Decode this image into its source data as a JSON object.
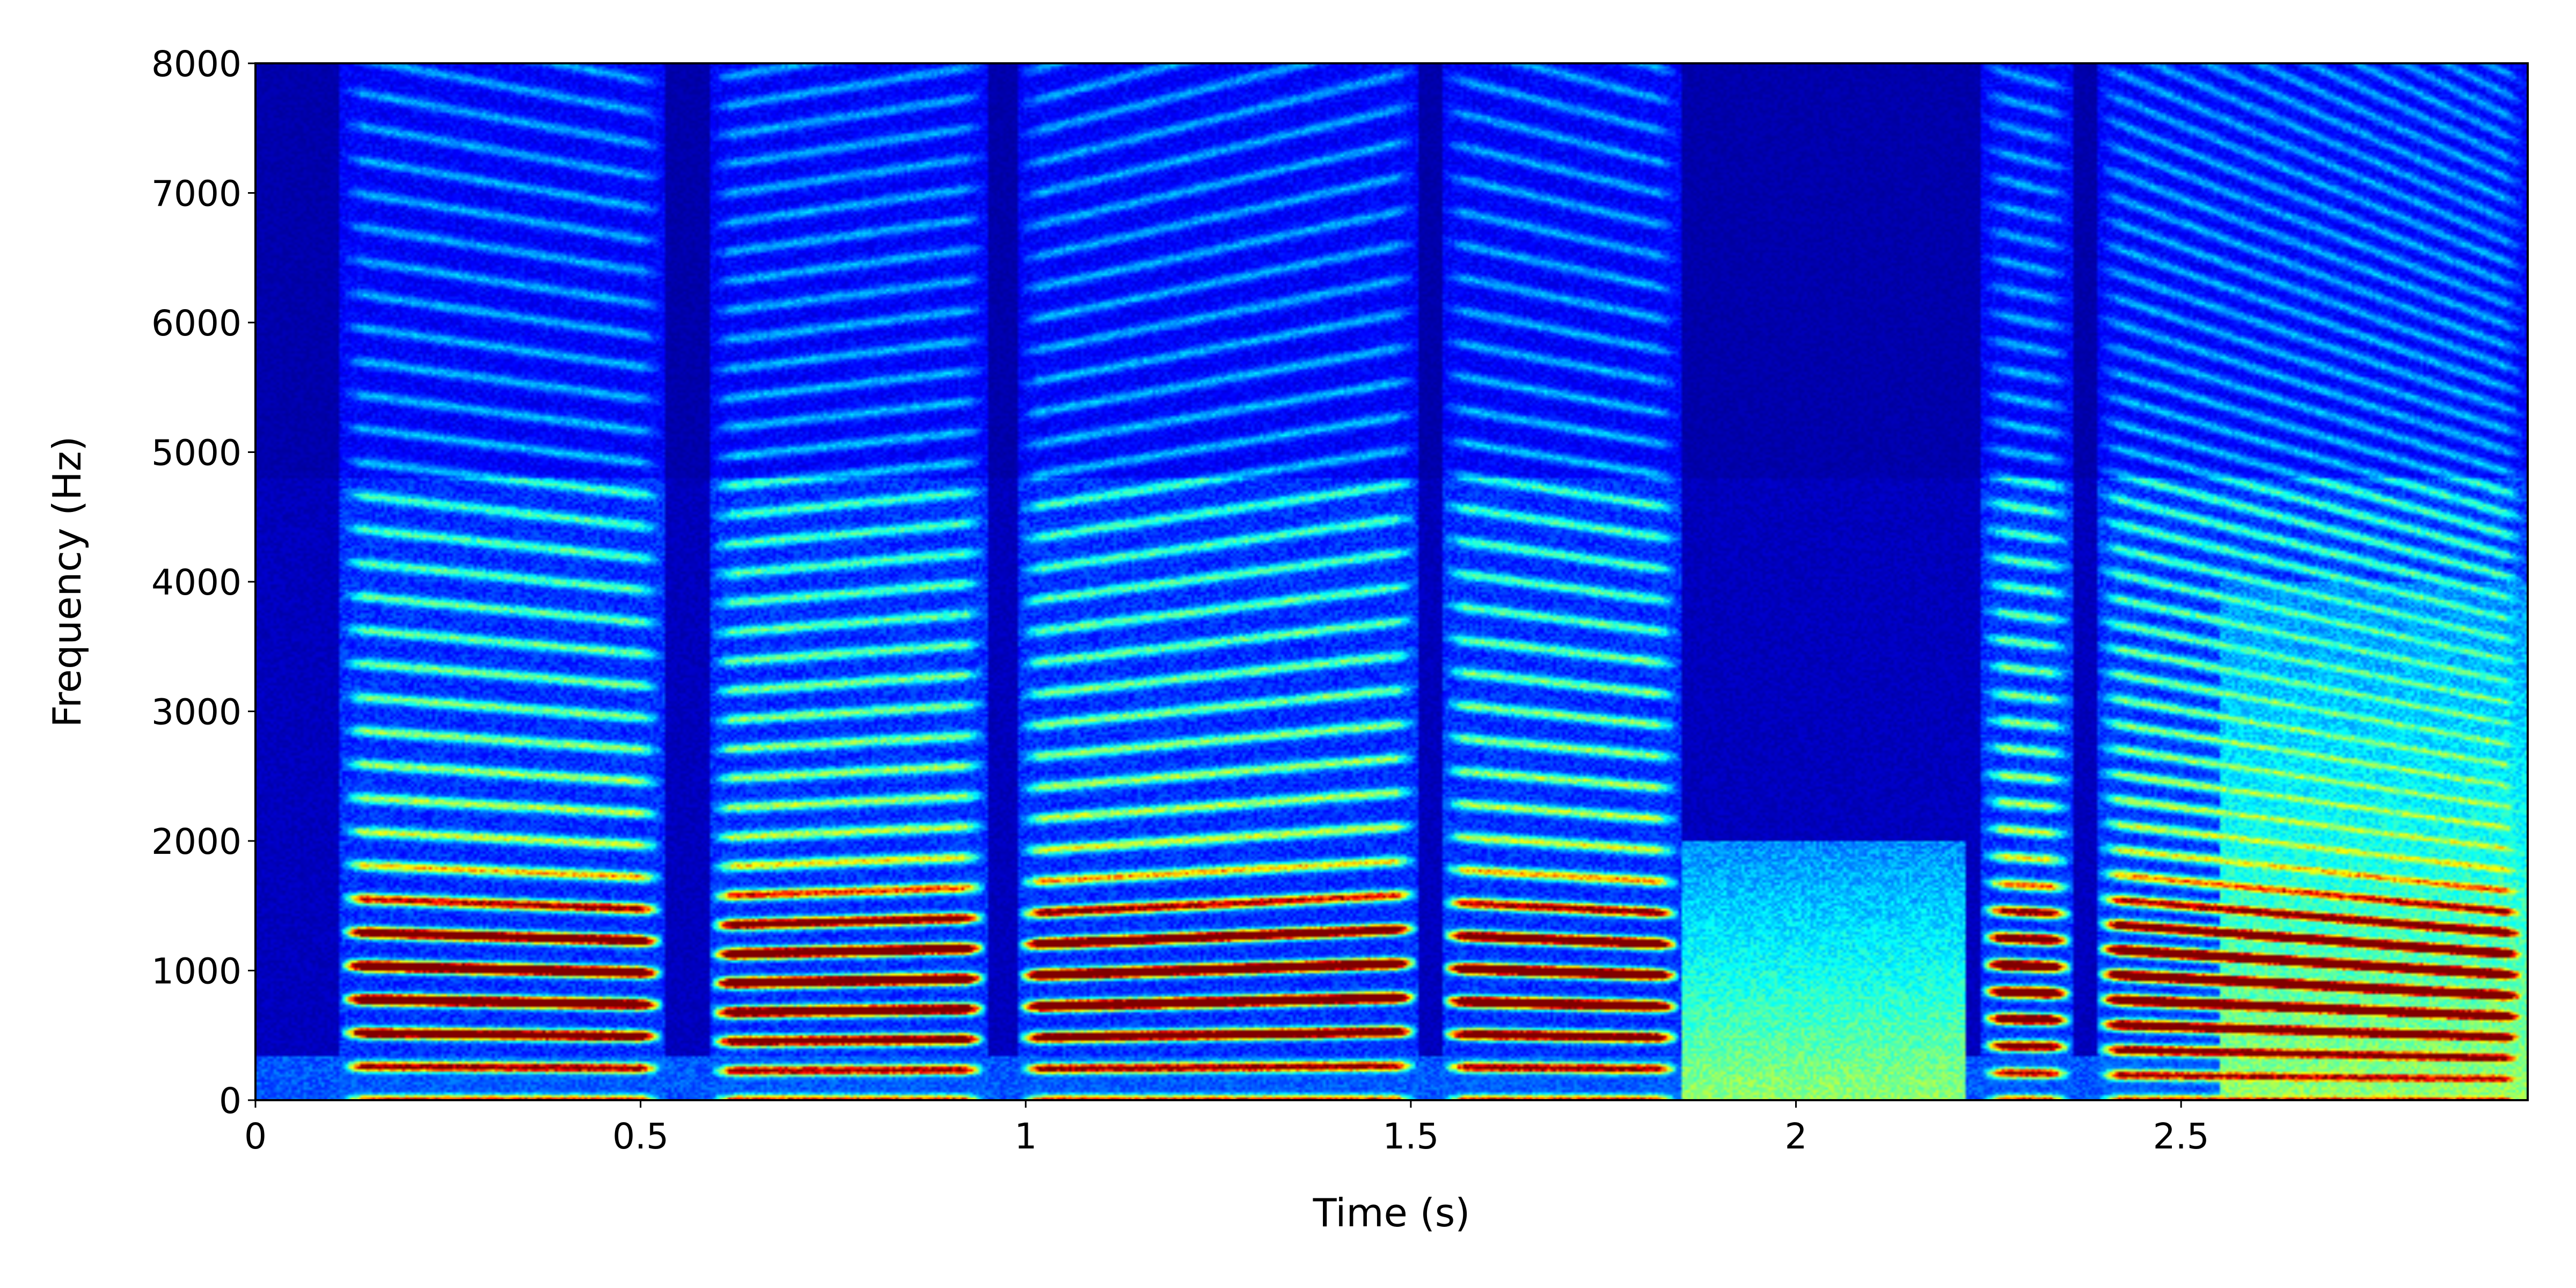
{
  "chart_data": {
    "type": "heatmap",
    "title": "",
    "xlabel": "Time (s)",
    "ylabel": "Frequency (Hz)",
    "xlim": [
      0,
      2.95
    ],
    "ylim": [
      0,
      8000
    ],
    "xticks": [
      0,
      0.5,
      1,
      1.5,
      2,
      2.5
    ],
    "xtick_labels": [
      "0",
      "0.5",
      "1",
      "1.5",
      "2",
      "2.5"
    ],
    "yticks": [
      0,
      1000,
      2000,
      3000,
      4000,
      5000,
      6000,
      7000,
      8000
    ],
    "ytick_labels": [
      "0",
      "1000",
      "2000",
      "3000",
      "4000",
      "5000",
      "6000",
      "7000",
      "8000"
    ],
    "colormap": "jet",
    "grid": false,
    "lowpass_cutoff_hz": 4800,
    "voiced_segments": [
      {
        "start": 0.11,
        "end": 0.53,
        "f0_start": 260,
        "f0_end": 245
      },
      {
        "start": 0.59,
        "end": 0.95,
        "f0_start": 225,
        "f0_end": 235
      },
      {
        "start": 0.99,
        "end": 1.51,
        "f0_start": 240,
        "f0_end": 265
      },
      {
        "start": 1.54,
        "end": 1.85,
        "f0_start": 255,
        "f0_end": 240
      },
      {
        "start": 2.24,
        "end": 2.36,
        "f0_start": 210,
        "f0_end": 205
      },
      {
        "start": 2.39,
        "end": 2.95,
        "f0_start": 195,
        "f0_end": 160
      }
    ],
    "noise_regions": [
      {
        "start": 1.85,
        "end": 2.22,
        "f_max": 2000
      },
      {
        "start": 2.55,
        "end": 2.95,
        "f_max": 4000
      }
    ],
    "formant_peaks_hz": [
      550,
      800,
      1100,
      1300
    ]
  }
}
